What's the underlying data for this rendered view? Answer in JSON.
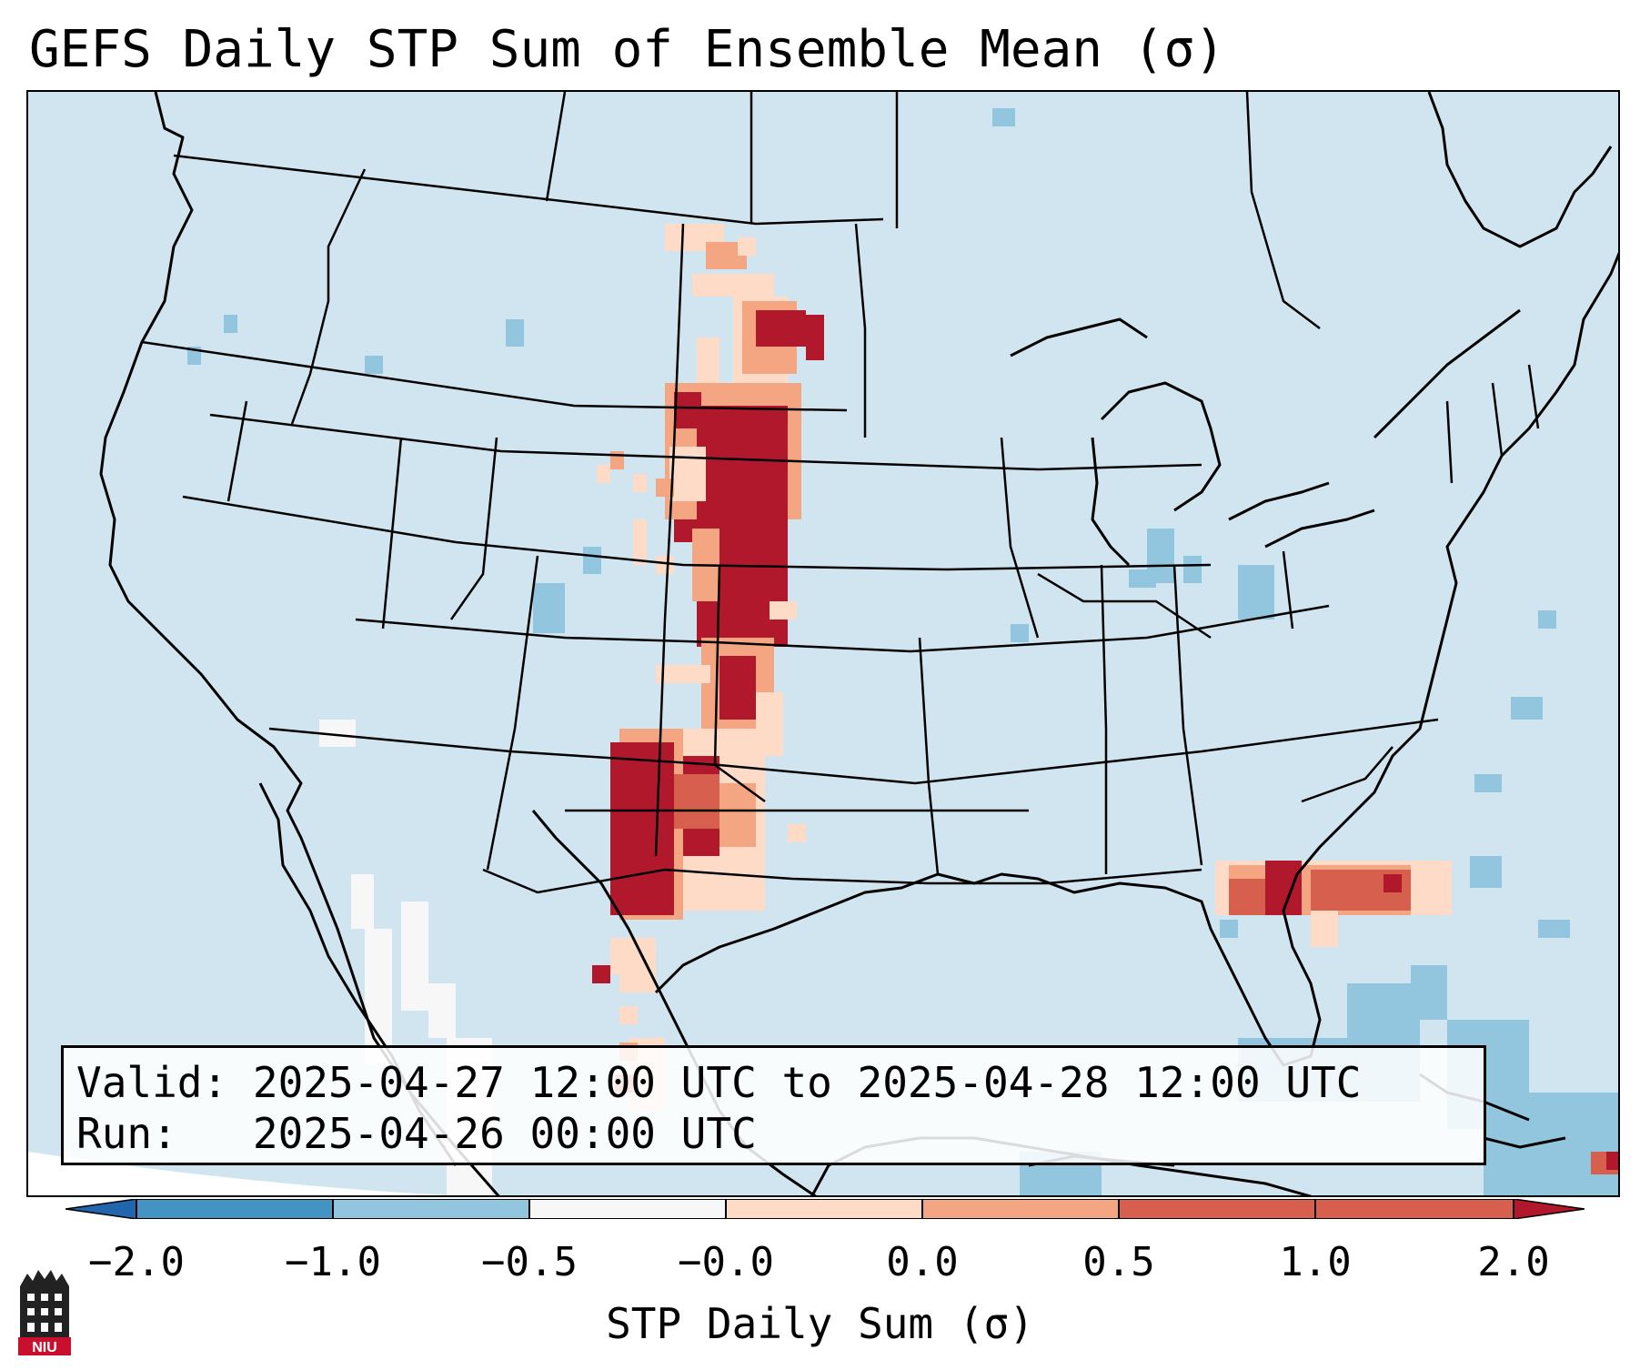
{
  "title": "GEFS Daily STP Sum of Ensemble Mean (σ)",
  "info": {
    "valid_label": "Valid:",
    "valid_text": "2025-04-27 12:00 UTC to 2025-04-28 12:00 UTC",
    "run_label": "Run:",
    "run_text": "2025-04-26 00:00 UTC"
  },
  "colorbar": {
    "label": "STP Daily Sum (σ)",
    "ticks": [
      "−2.0",
      "−1.0",
      "−0.5",
      "−0.0",
      "0.0",
      "0.5",
      "1.0",
      "2.0"
    ],
    "colors": [
      "#2166ac",
      "#4393c3",
      "#92c5de",
      "#f7f7f7",
      "#fddbc7",
      "#f4a582",
      "#d6604d",
      "#b2182b"
    ],
    "extend": "both"
  },
  "map": {
    "projection": "Lambert Conformal (CONUS)",
    "background_color": "#d1e5f0",
    "features": [
      "Northern Plains maximum (North Dakota to Kansas) ≥ 2.0σ",
      "Eastern New Mexico / West Texas maximum ≥ 2.0σ",
      "Georgia / South Carolina coast band 0.5–2.0σ"
    ]
  },
  "logo": {
    "text": "NIU"
  }
}
